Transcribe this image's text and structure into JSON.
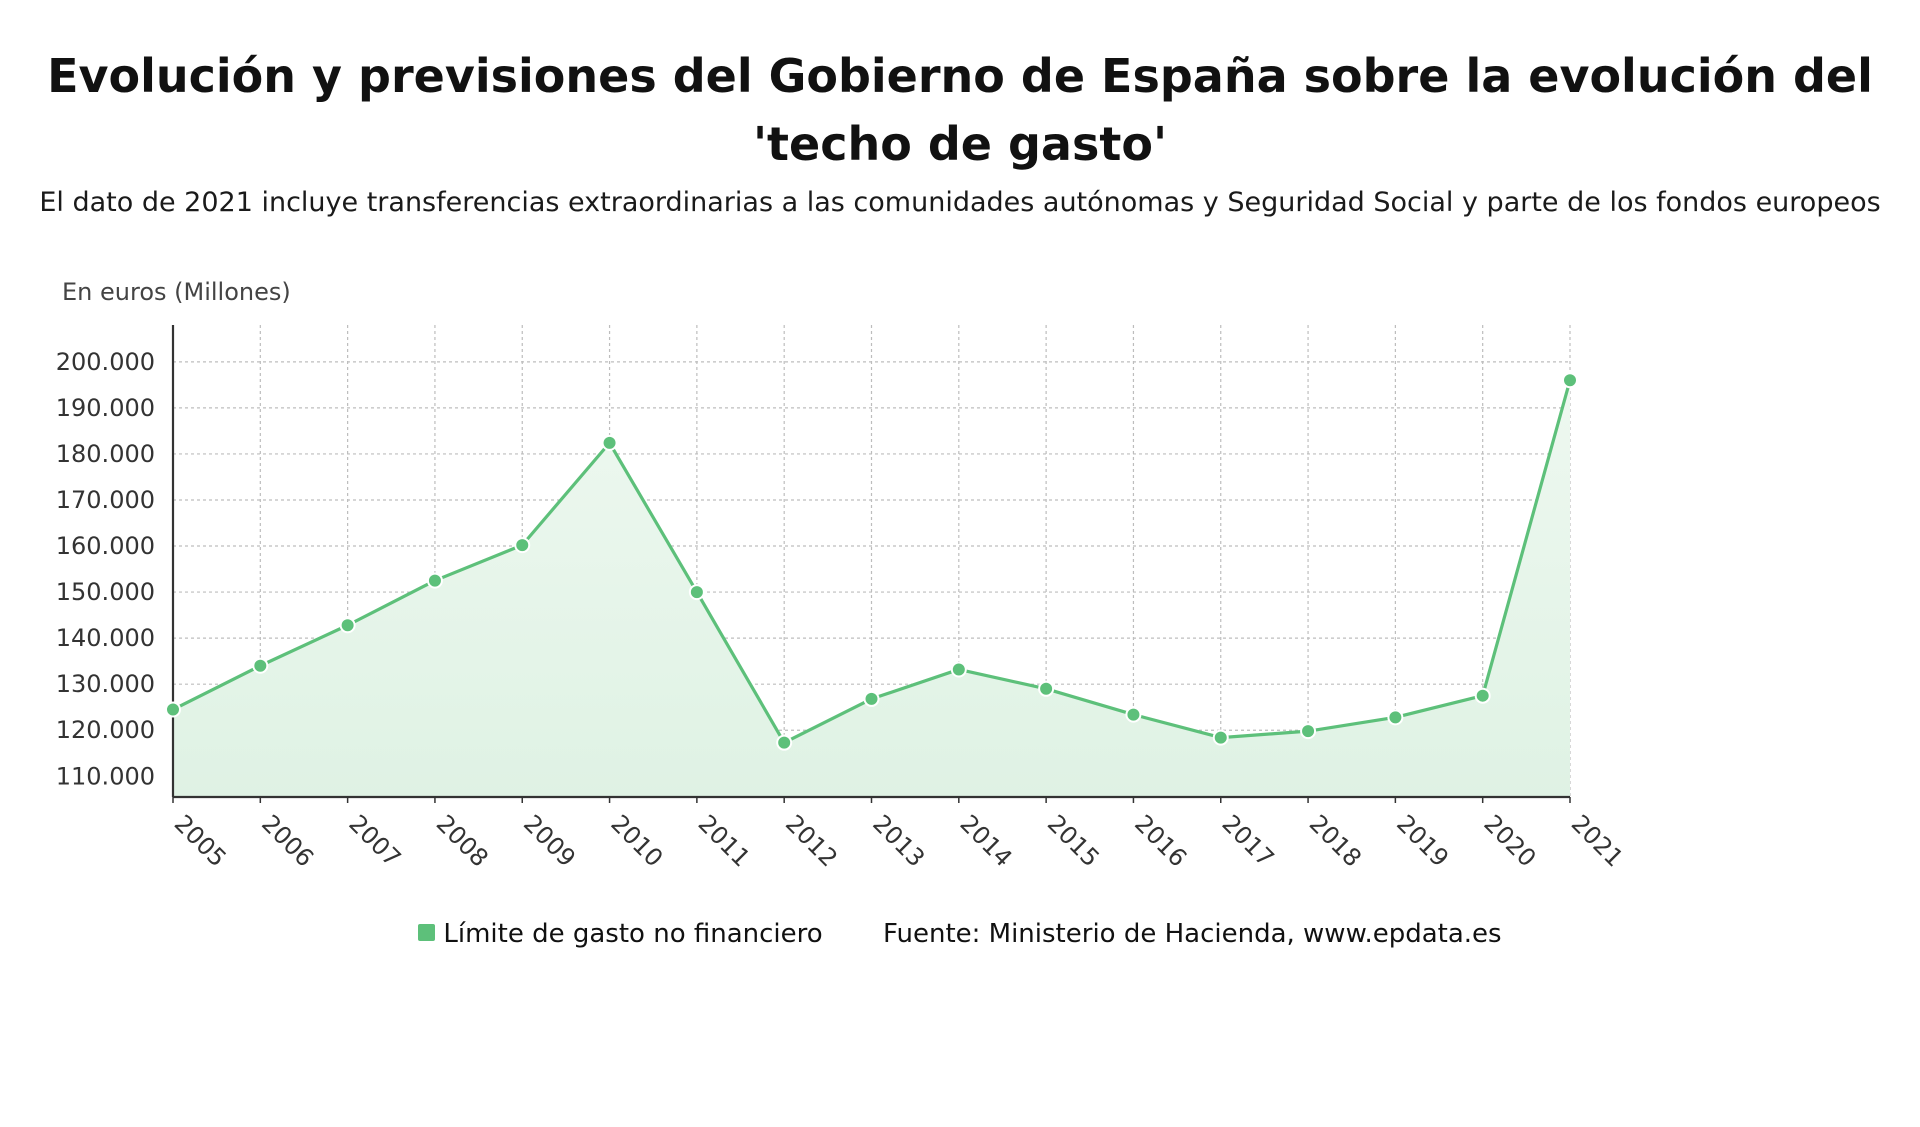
{
  "header": {
    "title": "Evolución y previsiones del Gobierno de España sobre la evolución del 'techo de gasto'",
    "subtitle": "El dato de 2021 incluye transferencias extraordinarias a las comunidades autónomas y Seguridad Social y parte de los fondos europeos"
  },
  "unit_label": "En euros (Millones)",
  "legend": {
    "series_label": "Límite de gasto no financiero",
    "source": "Fuente: Ministerio de Hacienda, www.epdata.es"
  },
  "colors": {
    "line": "#5dc07a",
    "fill_top": "#eef8f0",
    "fill_bottom": "#dff2e4",
    "grid": "#bdbdbd",
    "axis": "#333333"
  },
  "chart_data": {
    "type": "area",
    "title": "Evolución y previsiones del Gobierno de España sobre la evolución del 'techo de gasto'",
    "ylabel": "En euros (Millones)",
    "xlabel": "",
    "x": [
      "2005",
      "2006",
      "2007",
      "2008",
      "2009",
      "2010",
      "2011",
      "2012",
      "2013",
      "2014",
      "2015",
      "2016",
      "2017",
      "2018",
      "2019",
      "2020",
      "2021"
    ],
    "series": [
      {
        "name": "Límite de gasto no financiero",
        "values": [
          124500,
          134000,
          142800,
          152500,
          160200,
          182400,
          150000,
          117300,
          126800,
          133200,
          129000,
          123400,
          118400,
          119800,
          122800,
          127500,
          196000
        ]
      }
    ],
    "y_ticks": [
      110000,
      120000,
      130000,
      140000,
      150000,
      160000,
      170000,
      180000,
      190000,
      200000
    ],
    "y_tick_labels": [
      "110.000",
      "120.000",
      "130.000",
      "140.000",
      "150.000",
      "160.000",
      "170.000",
      "180.000",
      "190.000",
      "200.000"
    ],
    "ylim": [
      105500,
      208000
    ],
    "grid": true,
    "legend_position": "bottom"
  }
}
